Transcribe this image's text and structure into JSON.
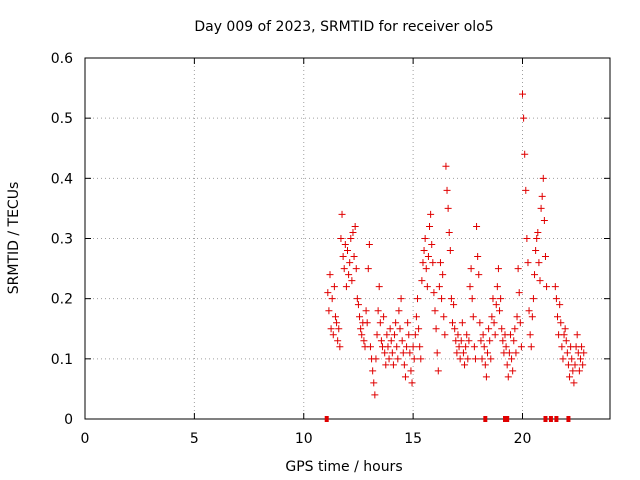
{
  "chart_data": {
    "type": "scatter",
    "title": "Day 009 of 2023, SRMTID for receiver olo5",
    "xlabel": "GPS time / hours",
    "ylabel": "SRMTID / TECUs",
    "xlim": [
      0,
      24
    ],
    "ylim": [
      0,
      0.6
    ],
    "xticks": [
      0,
      5,
      10,
      15,
      20
    ],
    "yticks": [
      0,
      0.1,
      0.2,
      0.3,
      0.4,
      0.5,
      0.6
    ],
    "xtick_labels": [
      "0",
      "5",
      "10",
      "15",
      "20"
    ],
    "ytick_labels": [
      "0",
      "0.1",
      "0.2",
      "0.3",
      "0.4",
      "0.5",
      "0.6"
    ],
    "grid": true,
    "marker": "+",
    "series_color": "#e00000",
    "series": [
      {
        "name": "SRMTID",
        "points": [
          [
            11.1,
            0.21
          ],
          [
            11.15,
            0.18
          ],
          [
            11.2,
            0.24
          ],
          [
            11.25,
            0.15
          ],
          [
            11.3,
            0.2
          ],
          [
            11.35,
            0.14
          ],
          [
            11.4,
            0.22
          ],
          [
            11.45,
            0.17
          ],
          [
            11.5,
            0.16
          ],
          [
            11.55,
            0.13
          ],
          [
            11.6,
            0.15
          ],
          [
            11.65,
            0.12
          ],
          [
            11.7,
            0.3
          ],
          [
            11.75,
            0.34
          ],
          [
            11.8,
            0.27
          ],
          [
            11.85,
            0.25
          ],
          [
            11.9,
            0.29
          ],
          [
            11.95,
            0.22
          ],
          [
            12.0,
            0.28
          ],
          [
            12.05,
            0.24
          ],
          [
            12.1,
            0.26
          ],
          [
            12.15,
            0.3
          ],
          [
            12.2,
            0.23
          ],
          [
            12.25,
            0.31
          ],
          [
            12.3,
            0.27
          ],
          [
            12.35,
            0.32
          ],
          [
            12.4,
            0.25
          ],
          [
            12.45,
            0.2
          ],
          [
            12.5,
            0.19
          ],
          [
            12.55,
            0.17
          ],
          [
            12.6,
            0.15
          ],
          [
            12.65,
            0.14
          ],
          [
            12.7,
            0.16
          ],
          [
            12.75,
            0.13
          ],
          [
            12.8,
            0.12
          ],
          [
            12.85,
            0.18
          ],
          [
            12.9,
            0.16
          ],
          [
            12.95,
            0.25
          ],
          [
            13.0,
            0.29
          ],
          [
            13.05,
            0.12
          ],
          [
            13.1,
            0.1
          ],
          [
            13.15,
            0.08
          ],
          [
            13.2,
            0.06
          ],
          [
            13.25,
            0.04
          ],
          [
            13.3,
            0.1
          ],
          [
            13.35,
            0.14
          ],
          [
            13.4,
            0.18
          ],
          [
            13.45,
            0.22
          ],
          [
            13.5,
            0.16
          ],
          [
            13.55,
            0.13
          ],
          [
            13.6,
            0.12
          ],
          [
            13.65,
            0.17
          ],
          [
            13.7,
            0.11
          ],
          [
            13.75,
            0.09
          ],
          [
            13.8,
            0.14
          ],
          [
            13.85,
            0.12
          ],
          [
            13.9,
            0.1
          ],
          [
            13.95,
            0.15
          ],
          [
            14.0,
            0.13
          ],
          [
            14.05,
            0.11
          ],
          [
            14.1,
            0.09
          ],
          [
            14.15,
            0.14
          ],
          [
            14.2,
            0.16
          ],
          [
            14.25,
            0.12
          ],
          [
            14.3,
            0.1
          ],
          [
            14.35,
            0.18
          ],
          [
            14.4,
            0.15
          ],
          [
            14.45,
            0.2
          ],
          [
            14.5,
            0.13
          ],
          [
            14.55,
            0.11
          ],
          [
            14.6,
            0.09
          ],
          [
            14.65,
            0.07
          ],
          [
            14.7,
            0.12
          ],
          [
            14.75,
            0.16
          ],
          [
            14.8,
            0.14
          ],
          [
            14.85,
            0.11
          ],
          [
            14.9,
            0.08
          ],
          [
            14.95,
            0.06
          ],
          [
            15.0,
            0.12
          ],
          [
            15.05,
            0.1
          ],
          [
            15.1,
            0.14
          ],
          [
            15.15,
            0.17
          ],
          [
            15.2,
            0.2
          ],
          [
            15.25,
            0.15
          ],
          [
            15.3,
            0.12
          ],
          [
            15.35,
            0.1
          ],
          [
            15.4,
            0.23
          ],
          [
            15.45,
            0.26
          ],
          [
            15.5,
            0.28
          ],
          [
            15.55,
            0.3
          ],
          [
            15.6,
            0.25
          ],
          [
            15.65,
            0.22
          ],
          [
            15.7,
            0.27
          ],
          [
            15.75,
            0.32
          ],
          [
            15.8,
            0.34
          ],
          [
            15.85,
            0.29
          ],
          [
            15.9,
            0.26
          ],
          [
            15.95,
            0.21
          ],
          [
            16.0,
            0.18
          ],
          [
            16.05,
            0.15
          ],
          [
            16.1,
            0.11
          ],
          [
            16.15,
            0.08
          ],
          [
            16.2,
            0.22
          ],
          [
            16.25,
            0.26
          ],
          [
            16.3,
            0.2
          ],
          [
            16.35,
            0.24
          ],
          [
            16.4,
            0.17
          ],
          [
            16.45,
            0.14
          ],
          [
            16.5,
            0.42
          ],
          [
            16.55,
            0.38
          ],
          [
            16.6,
            0.35
          ],
          [
            16.65,
            0.31
          ],
          [
            16.7,
            0.28
          ],
          [
            16.75,
            0.2
          ],
          [
            16.8,
            0.16
          ],
          [
            16.85,
            0.19
          ],
          [
            16.9,
            0.15
          ],
          [
            16.95,
            0.13
          ],
          [
            17.0,
            0.11
          ],
          [
            17.05,
            0.14
          ],
          [
            17.1,
            0.12
          ],
          [
            17.15,
            0.1
          ],
          [
            17.2,
            0.13
          ],
          [
            17.25,
            0.16
          ],
          [
            17.3,
            0.11
          ],
          [
            17.35,
            0.09
          ],
          [
            17.4,
            0.12
          ],
          [
            17.45,
            0.14
          ],
          [
            17.5,
            0.1
          ],
          [
            17.55,
            0.13
          ],
          [
            17.6,
            0.22
          ],
          [
            17.65,
            0.25
          ],
          [
            17.7,
            0.2
          ],
          [
            17.75,
            0.17
          ],
          [
            17.8,
            0.12
          ],
          [
            17.85,
            0.1
          ],
          [
            17.9,
            0.32
          ],
          [
            17.95,
            0.27
          ],
          [
            18.0,
            0.24
          ],
          [
            18.05,
            0.16
          ],
          [
            18.1,
            0.13
          ],
          [
            18.15,
            0.1
          ],
          [
            18.2,
            0.14
          ],
          [
            18.25,
            0.12
          ],
          [
            18.3,
            0.09
          ],
          [
            18.35,
            0.07
          ],
          [
            18.4,
            0.11
          ],
          [
            18.45,
            0.15
          ],
          [
            18.5,
            0.13
          ],
          [
            18.55,
            0.1
          ],
          [
            18.6,
            0.17
          ],
          [
            18.65,
            0.2
          ],
          [
            18.7,
            0.16
          ],
          [
            18.75,
            0.14
          ],
          [
            18.8,
            0.19
          ],
          [
            18.85,
            0.22
          ],
          [
            18.9,
            0.25
          ],
          [
            18.95,
            0.18
          ],
          [
            19.0,
            0.2
          ],
          [
            19.05,
            0.15
          ],
          [
            19.1,
            0.13
          ],
          [
            19.15,
            0.11
          ],
          [
            19.2,
            0.14
          ],
          [
            19.25,
            0.12
          ],
          [
            19.3,
            0.09
          ],
          [
            19.35,
            0.07
          ],
          [
            19.4,
            0.11
          ],
          [
            19.45,
            0.14
          ],
          [
            19.5,
            0.1
          ],
          [
            19.55,
            0.08
          ],
          [
            19.6,
            0.13
          ],
          [
            19.65,
            0.15
          ],
          [
            19.7,
            0.11
          ],
          [
            19.75,
            0.17
          ],
          [
            19.8,
            0.25
          ],
          [
            19.85,
            0.21
          ],
          [
            19.9,
            0.16
          ],
          [
            19.95,
            0.12
          ],
          [
            20.0,
            0.54
          ],
          [
            20.05,
            0.5
          ],
          [
            20.1,
            0.44
          ],
          [
            20.15,
            0.38
          ],
          [
            20.2,
            0.3
          ],
          [
            20.25,
            0.26
          ],
          [
            20.3,
            0.18
          ],
          [
            20.35,
            0.14
          ],
          [
            20.4,
            0.12
          ],
          [
            20.45,
            0.17
          ],
          [
            20.5,
            0.2
          ],
          [
            20.55,
            0.24
          ],
          [
            20.6,
            0.28
          ],
          [
            20.65,
            0.3
          ],
          [
            20.7,
            0.31
          ],
          [
            20.75,
            0.26
          ],
          [
            20.8,
            0.23
          ],
          [
            20.85,
            0.35
          ],
          [
            20.9,
            0.37
          ],
          [
            20.95,
            0.4
          ],
          [
            21.0,
            0.33
          ],
          [
            21.05,
            0.27
          ],
          [
            21.1,
            0.22
          ],
          [
            21.5,
            0.22
          ],
          [
            21.55,
            0.2
          ],
          [
            21.6,
            0.17
          ],
          [
            21.65,
            0.14
          ],
          [
            21.7,
            0.19
          ],
          [
            21.75,
            0.16
          ],
          [
            21.8,
            0.12
          ],
          [
            21.85,
            0.1
          ],
          [
            21.9,
            0.14
          ],
          [
            21.95,
            0.15
          ],
          [
            22.0,
            0.13
          ],
          [
            22.05,
            0.11
          ],
          [
            22.1,
            0.09
          ],
          [
            22.15,
            0.07
          ],
          [
            22.2,
            0.12
          ],
          [
            22.25,
            0.1
          ],
          [
            22.3,
            0.08
          ],
          [
            22.35,
            0.06
          ],
          [
            22.4,
            0.09
          ],
          [
            22.45,
            0.12
          ],
          [
            22.5,
            0.14
          ],
          [
            22.55,
            0.11
          ],
          [
            22.6,
            0.08
          ],
          [
            22.65,
            0.1
          ],
          [
            22.7,
            0.12
          ],
          [
            22.75,
            0.09
          ],
          [
            22.8,
            0.11
          ]
        ]
      }
    ],
    "zero_markers_x": [
      11.05,
      18.3,
      19.2,
      19.3,
      21.05,
      21.3,
      21.55,
      22.1
    ]
  }
}
